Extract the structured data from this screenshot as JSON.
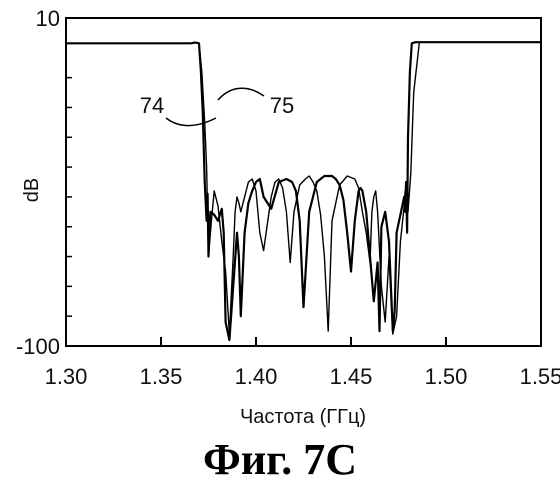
{
  "caption": "Фиг. 7С",
  "chart_data": {
    "type": "line",
    "xlabel": "Частота (ГГц)",
    "ylabel": "dB",
    "xlim": [
      1.3,
      1.55
    ],
    "ylim": [
      -100,
      10
    ],
    "xticks": [
      "1.30",
      "1.35",
      "1.40",
      "1.45",
      "1.50",
      "1.55"
    ],
    "yticks": [
      "10",
      "-100"
    ],
    "grid": false,
    "annotations": [
      {
        "text": "74",
        "series": 0
      },
      {
        "text": "75",
        "series": 1
      }
    ],
    "series": [
      {
        "name": "74",
        "x": [
          1.3,
          1.32,
          1.34,
          1.36,
          1.366,
          1.368,
          1.37,
          1.371,
          1.372,
          1.373,
          1.374,
          1.3745,
          1.375,
          1.3755,
          1.376,
          1.378,
          1.38,
          1.382,
          1.383,
          1.384,
          1.386,
          1.388,
          1.39,
          1.391,
          1.392,
          1.394,
          1.396,
          1.398,
          1.4,
          1.402,
          1.404,
          1.408,
          1.412,
          1.416,
          1.419,
          1.421,
          1.423,
          1.425,
          1.428,
          1.432,
          1.436,
          1.44,
          1.442,
          1.444,
          1.446,
          1.448,
          1.45,
          1.452,
          1.454,
          1.455,
          1.456,
          1.458,
          1.46,
          1.462,
          1.464,
          1.465,
          1.466,
          1.468,
          1.47,
          1.472,
          1.473,
          1.474,
          1.476,
          1.478,
          1.4785,
          1.479,
          1.4795,
          1.48,
          1.481,
          1.482,
          1.484,
          1.49,
          1.51,
          1.53,
          1.55
        ],
        "y": [
          1.5,
          1.5,
          1.5,
          1.5,
          1.5,
          1.8,
          1.5,
          -8,
          -22,
          -45,
          -58,
          -49,
          -70,
          -62,
          -55,
          -56,
          -58,
          -54,
          -62,
          -92,
          -98,
          -80,
          -62,
          -70,
          -90,
          -62,
          -52,
          -48,
          -45,
          -44,
          -50,
          -54,
          -45,
          -44,
          -45,
          -48,
          -58,
          -87,
          -55,
          -45,
          -43,
          -43,
          -44,
          -46,
          -51,
          -62,
          -75,
          -58,
          -48,
          -47,
          -48,
          -55,
          -70,
          -85,
          -72,
          -95,
          -60,
          -55,
          -65,
          -95,
          -88,
          -62,
          -56,
          -50,
          -55,
          -45,
          -62,
          -30,
          -8,
          1.5,
          1.9,
          1.9,
          1.9,
          1.9,
          1.9
        ]
      },
      {
        "name": "75",
        "x": [
          1.3,
          1.32,
          1.34,
          1.36,
          1.366,
          1.368,
          1.37,
          1.3715,
          1.373,
          1.374,
          1.375,
          1.3765,
          1.378,
          1.38,
          1.382,
          1.384,
          1.386,
          1.388,
          1.389,
          1.39,
          1.391,
          1.392,
          1.394,
          1.396,
          1.398,
          1.4,
          1.402,
          1.404,
          1.408,
          1.41,
          1.412,
          1.414,
          1.416,
          1.418,
          1.42,
          1.423,
          1.426,
          1.428,
          1.43,
          1.432,
          1.434,
          1.436,
          1.438,
          1.44,
          1.444,
          1.448,
          1.452,
          1.454,
          1.456,
          1.458,
          1.46,
          1.461,
          1.462,
          1.463,
          1.464,
          1.466,
          1.468,
          1.47,
          1.472,
          1.474,
          1.476,
          1.478,
          1.4785,
          1.479,
          1.48,
          1.4815,
          1.483,
          1.486,
          1.49,
          1.51,
          1.53,
          1.55
        ],
        "y": [
          1.5,
          1.5,
          1.5,
          1.5,
          1.5,
          1.8,
          1.5,
          -8,
          -25,
          -40,
          -70,
          -58,
          -48,
          -53,
          -65,
          -75,
          -96,
          -70,
          -55,
          -50,
          -52,
          -55,
          -50,
          -45,
          -44,
          -48,
          -62,
          -68,
          -50,
          -45,
          -44,
          -47,
          -55,
          -72,
          -55,
          -46,
          -44,
          -43,
          -45,
          -48,
          -56,
          -70,
          -95,
          -58,
          -46,
          -43,
          -44,
          -47,
          -55,
          -62,
          -72,
          -55,
          -50,
          -48,
          -55,
          -80,
          -92,
          -70,
          -96,
          -90,
          -65,
          -53,
          -48,
          -52,
          -55,
          -42,
          -15,
          1.9,
          1.9,
          1.9,
          1.9,
          1.9
        ]
      }
    ]
  }
}
